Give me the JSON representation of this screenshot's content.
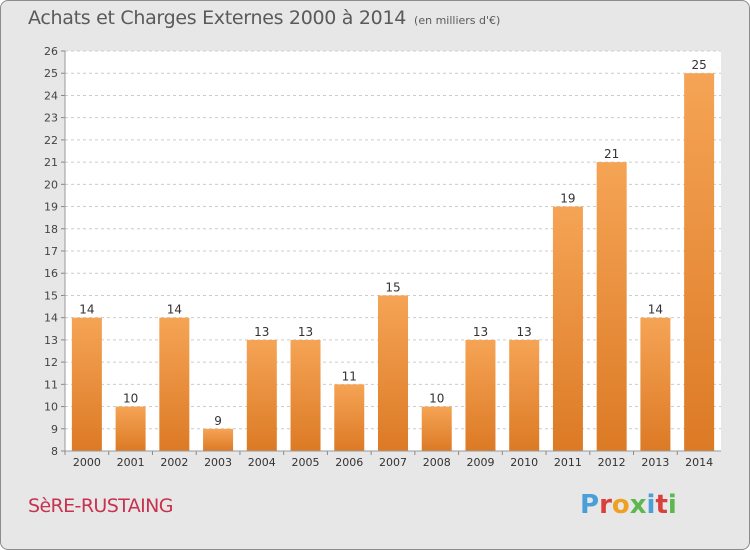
{
  "header": {
    "title": "Achats et Charges Externes 2000 à 2014",
    "subtitle": "(en milliers d'€)"
  },
  "footer": {
    "commune": "SèRE-RUSTAING",
    "brand": "Proxiti"
  },
  "colors": {
    "bar_fill_light": "#f5a455",
    "bar_fill_dark": "#dc7a25",
    "commune_text": "#c8324f",
    "background": "#e7e7e7",
    "plot_background": "#ffffff",
    "brand_letters": [
      "#4a9fd8",
      "#d9403c",
      "#f0a020",
      "#5cb84e",
      "#4a9fd8",
      "#d9403c",
      "#5cb84e"
    ]
  },
  "chart_data": {
    "type": "bar",
    "categories": [
      "2000",
      "2001",
      "2002",
      "2003",
      "2004",
      "2005",
      "2006",
      "2007",
      "2008",
      "2009",
      "2010",
      "2011",
      "2012",
      "2013",
      "2014"
    ],
    "values": [
      14,
      10,
      14,
      9,
      13,
      13,
      11,
      15,
      10,
      13,
      13,
      19,
      21,
      14,
      25
    ],
    "title": "Achats et Charges Externes 2000 à 2014",
    "ylim": [
      8,
      26
    ],
    "yticks": [
      8,
      9,
      10,
      11,
      12,
      13,
      14,
      15,
      16,
      17,
      18,
      19,
      20,
      21,
      22,
      23,
      24,
      25,
      26
    ],
    "grid": true,
    "data_labels": true
  }
}
